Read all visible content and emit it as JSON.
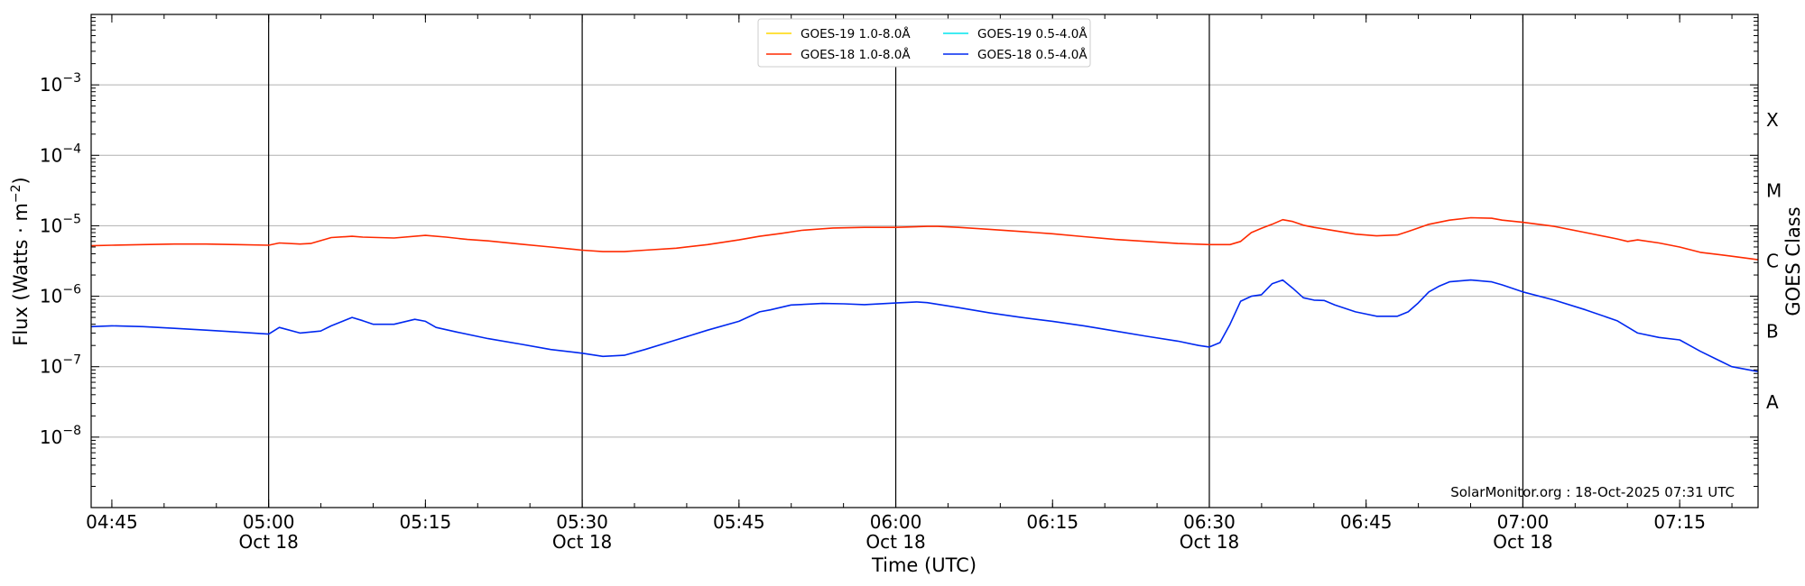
{
  "chart_data": {
    "type": "line",
    "title": "",
    "xlabel": "Time (UTC)",
    "ylabel_parts": [
      "Flux (Watts · m",
      "−2",
      ")"
    ],
    "y2label": "GOES Class",
    "yscale": "log",
    "ylim": [
      1e-09,
      0.01
    ],
    "x_unit": "hours UTC, 18-Oct-2025",
    "xlim": [
      4.717,
      7.375
    ],
    "grid": "horizontal at each decade",
    "legend_position": "top-center",
    "credit": "SolarMonitor.org : 18-Oct-2025 07:31 UTC",
    "y_ticks": [
      {
        "value": 1e-08,
        "base": "10",
        "exp": "−8"
      },
      {
        "value": 1e-07,
        "base": "10",
        "exp": "−7"
      },
      {
        "value": 1e-06,
        "base": "10",
        "exp": "−6"
      },
      {
        "value": 1e-05,
        "base": "10",
        "exp": "−5"
      },
      {
        "value": 0.0001,
        "base": "10",
        "exp": "−4"
      },
      {
        "value": 0.001,
        "base": "10",
        "exp": "−3"
      }
    ],
    "class_labels": [
      {
        "label": "A",
        "flux": 1e-08
      },
      {
        "label": "B",
        "flux": 1e-07
      },
      {
        "label": "C",
        "flux": 1e-06
      },
      {
        "label": "M",
        "flux": 1e-05
      },
      {
        "label": "X",
        "flux": 0.0001
      }
    ],
    "x_ticks": [
      {
        "t": 4.75,
        "label": "04:45",
        "date": ""
      },
      {
        "t": 5.0,
        "label": "05:00",
        "date": "Oct 18"
      },
      {
        "t": 5.25,
        "label": "05:15",
        "date": ""
      },
      {
        "t": 5.5,
        "label": "05:30",
        "date": "Oct 18"
      },
      {
        "t": 5.75,
        "label": "05:45",
        "date": ""
      },
      {
        "t": 6.0,
        "label": "06:00",
        "date": "Oct 18"
      },
      {
        "t": 6.25,
        "label": "06:15",
        "date": ""
      },
      {
        "t": 6.5,
        "label": "06:30",
        "date": "Oct 18"
      },
      {
        "t": 6.75,
        "label": "06:45",
        "date": ""
      },
      {
        "t": 7.0,
        "label": "07:00",
        "date": "Oct 18"
      },
      {
        "t": 7.25,
        "label": "07:15",
        "date": ""
      }
    ],
    "vlines": [
      5.0,
      5.5,
      6.0,
      6.5,
      7.0
    ],
    "series": [
      {
        "name": "GOES-19 1.0-8.0Å",
        "color": "#ffd700",
        "legend_col": 0,
        "legend_row": 0,
        "x": [],
        "y": []
      },
      {
        "name": "GOES-18 1.0-8.0Å",
        "color": "#ff2a00",
        "legend_col": 0,
        "legend_row": 1,
        "x": [
          4.717,
          4.75,
          4.8,
          4.85,
          4.9,
          4.95,
          5.0,
          5.017,
          5.05,
          5.067,
          5.1,
          5.133,
          5.15,
          5.2,
          5.25,
          5.283,
          5.317,
          5.35,
          5.4,
          5.45,
          5.5,
          5.533,
          5.567,
          5.6,
          5.65,
          5.7,
          5.75,
          5.783,
          5.817,
          5.85,
          5.9,
          5.95,
          6.0,
          6.05,
          6.067,
          6.1,
          6.15,
          6.2,
          6.25,
          6.3,
          6.35,
          6.4,
          6.45,
          6.5,
          6.533,
          6.55,
          6.567,
          6.583,
          6.6,
          6.617,
          6.633,
          6.65,
          6.667,
          6.7,
          6.733,
          6.767,
          6.8,
          6.817,
          6.85,
          6.883,
          6.917,
          6.95,
          6.967,
          7.0,
          7.05,
          7.1,
          7.15,
          7.167,
          7.183,
          7.217,
          7.25,
          7.283,
          7.333,
          7.375
        ],
        "y": [
          5.2e-06,
          5.3e-06,
          5.4e-06,
          5.5e-06,
          5.5e-06,
          5.4e-06,
          5.3e-06,
          5.7e-06,
          5.5e-06,
          5.6e-06,
          6.8e-06,
          7.1e-06,
          6.9e-06,
          6.7e-06,
          7.3e-06,
          6.9e-06,
          6.4e-06,
          6.1e-06,
          5.5e-06,
          5e-06,
          4.5e-06,
          4.3e-06,
          4.3e-06,
          4.5e-06,
          4.8e-06,
          5.4e-06,
          6.3e-06,
          7.1e-06,
          7.8e-06,
          8.6e-06,
          9.3e-06,
          9.5e-06,
          9.5e-06,
          9.8e-06,
          9.8e-06,
          9.5e-06,
          8.9e-06,
          8.3e-06,
          7.7e-06,
          7e-06,
          6.4e-06,
          6e-06,
          5.6e-06,
          5.4e-06,
          5.4e-06,
          6e-06,
          8e-06,
          9.2e-06,
          1.05e-05,
          1.22e-05,
          1.15e-05,
          1.02e-05,
          9.5e-06,
          8.5e-06,
          7.6e-06,
          7.2e-06,
          7.4e-06,
          8.3e-06,
          1.05e-05,
          1.2e-05,
          1.3e-05,
          1.28e-05,
          1.2e-05,
          1.12e-05,
          9.8e-06,
          8e-06,
          6.5e-06,
          6e-06,
          6.3e-06,
          5.7e-06,
          5e-06,
          4.2e-06,
          3.7e-06,
          3.3e-06
        ]
      },
      {
        "name": "GOES-19 0.5-4.0Å",
        "color": "#00e5ee",
        "legend_col": 1,
        "legend_row": 0,
        "x": [],
        "y": []
      },
      {
        "name": "GOES-18 0.5-4.0Å",
        "color": "#0028f0",
        "legend_col": 1,
        "legend_row": 1,
        "x": [
          4.717,
          4.75,
          4.8,
          4.85,
          4.9,
          4.95,
          5.0,
          5.017,
          5.05,
          5.083,
          5.1,
          5.133,
          5.15,
          5.167,
          5.2,
          5.233,
          5.25,
          5.267,
          5.3,
          5.35,
          5.4,
          5.45,
          5.5,
          5.533,
          5.567,
          5.6,
          5.65,
          5.7,
          5.75,
          5.783,
          5.8,
          5.833,
          5.883,
          5.917,
          5.95,
          6.0,
          6.033,
          6.05,
          6.1,
          6.15,
          6.2,
          6.25,
          6.3,
          6.35,
          6.4,
          6.45,
          6.483,
          6.5,
          6.517,
          6.533,
          6.55,
          6.567,
          6.583,
          6.6,
          6.617,
          6.633,
          6.65,
          6.667,
          6.683,
          6.7,
          6.733,
          6.767,
          6.8,
          6.817,
          6.833,
          6.85,
          6.867,
          6.883,
          6.917,
          6.95,
          6.967,
          7.0,
          7.05,
          7.1,
          7.15,
          7.183,
          7.217,
          7.25,
          7.283,
          7.333,
          7.375
        ],
        "y": [
          3.7e-07,
          3.8e-07,
          3.7e-07,
          3.5e-07,
          3.3e-07,
          3.1e-07,
          2.9e-07,
          3.6e-07,
          3e-07,
          3.2e-07,
          3.8e-07,
          5e-07,
          4.5e-07,
          4e-07,
          4e-07,
          4.7e-07,
          4.4e-07,
          3.6e-07,
          3.1e-07,
          2.5e-07,
          2.1e-07,
          1.75e-07,
          1.55e-07,
          1.4e-07,
          1.45e-07,
          1.75e-07,
          2.4e-07,
          3.3e-07,
          4.4e-07,
          6e-07,
          6.4e-07,
          7.5e-07,
          7.9e-07,
          7.8e-07,
          7.6e-07,
          8e-07,
          8.3e-07,
          8.1e-07,
          6.9e-07,
          5.8e-07,
          5e-07,
          4.4e-07,
          3.8e-07,
          3.2e-07,
          2.7e-07,
          2.3e-07,
          2e-07,
          1.9e-07,
          2.2e-07,
          4e-07,
          8.5e-07,
          1e-06,
          1.05e-06,
          1.5e-06,
          1.7e-06,
          1.3e-06,
          9.5e-07,
          8.8e-07,
          8.7e-07,
          7.5e-07,
          6e-07,
          5.2e-07,
          5.2e-07,
          6e-07,
          8e-07,
          1.15e-06,
          1.4e-06,
          1.6e-06,
          1.7e-06,
          1.6e-06,
          1.45e-06,
          1.15e-06,
          8.8e-07,
          6.4e-07,
          4.5e-07,
          3e-07,
          2.6e-07,
          2.4e-07,
          1.65e-07,
          1e-07,
          8.5e-08
        ]
      }
    ]
  }
}
